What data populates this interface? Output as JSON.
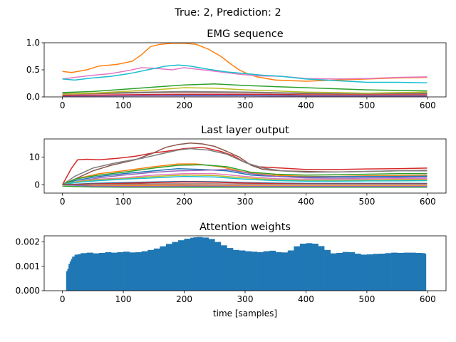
{
  "suptitle": "True: 2, Prediction: 2",
  "chart_data": [
    {
      "type": "line",
      "title": "EMG sequence",
      "xlabel": "",
      "ylabel": "",
      "xlim": [
        -30,
        630
      ],
      "ylim": [
        0,
        1.0
      ],
      "xticks": [
        0,
        100,
        200,
        300,
        400,
        500,
        600
      ],
      "xtick_labels": [
        "0",
        "100",
        "200",
        "300",
        "400",
        "500",
        "600"
      ],
      "yticks": [
        0,
        0.5,
        1.0
      ],
      "ytick_labels": [
        "0.0",
        "0.5",
        "1.0"
      ],
      "grid": false,
      "series": [
        {
          "color": "#1f77b4",
          "x": [
            0,
            100,
            200,
            300,
            400,
            500,
            599
          ],
          "y": [
            0.02,
            0.02,
            0.03,
            0.03,
            0.02,
            0.02,
            0.02
          ]
        },
        {
          "color": "#ff7f0e",
          "x": [
            0,
            15,
            40,
            60,
            90,
            115,
            130,
            145,
            160,
            180,
            200,
            220,
            240,
            260,
            275,
            290,
            305,
            320,
            350,
            400,
            450,
            500,
            550,
            599
          ],
          "y": [
            0.47,
            0.45,
            0.5,
            0.57,
            0.6,
            0.66,
            0.78,
            0.93,
            0.97,
            0.99,
            0.99,
            0.97,
            0.88,
            0.75,
            0.62,
            0.5,
            0.42,
            0.37,
            0.31,
            0.29,
            0.31,
            0.33,
            0.35,
            0.36
          ]
        },
        {
          "color": "#2ca02c",
          "x": [
            0,
            50,
            100,
            150,
            200,
            250,
            300,
            350,
            400,
            450,
            500,
            550,
            599
          ],
          "y": [
            0.08,
            0.1,
            0.14,
            0.18,
            0.22,
            0.24,
            0.21,
            0.19,
            0.17,
            0.15,
            0.13,
            0.12,
            0.11
          ]
        },
        {
          "color": "#d62728",
          "x": [
            0,
            100,
            200,
            300,
            400,
            500,
            599
          ],
          "y": [
            0.03,
            0.04,
            0.05,
            0.05,
            0.04,
            0.04,
            0.04
          ]
        },
        {
          "color": "#9467bd",
          "x": [
            0,
            100,
            200,
            300,
            400,
            500,
            599
          ],
          "y": [
            0.01,
            0.02,
            0.02,
            0.02,
            0.01,
            0.01,
            0.01
          ]
        },
        {
          "color": "#8c564b",
          "x": [
            0,
            100,
            200,
            300,
            400,
            500,
            599
          ],
          "y": [
            0.05,
            0.07,
            0.09,
            0.08,
            0.06,
            0.06,
            0.06
          ]
        },
        {
          "color": "#e377c2",
          "x": [
            0,
            20,
            50,
            80,
            110,
            130,
            150,
            180,
            200,
            230,
            260,
            290,
            320,
            360,
            400,
            450,
            500,
            550,
            599
          ],
          "y": [
            0.33,
            0.36,
            0.4,
            0.43,
            0.49,
            0.54,
            0.53,
            0.5,
            0.54,
            0.5,
            0.46,
            0.42,
            0.39,
            0.38,
            0.34,
            0.33,
            0.34,
            0.36,
            0.37
          ]
        },
        {
          "color": "#7f7f7f",
          "x": [
            0,
            100,
            200,
            300,
            400,
            500,
            599
          ],
          "y": [
            0.06,
            0.08,
            0.1,
            0.09,
            0.07,
            0.06,
            0.07
          ]
        },
        {
          "color": "#bcbd22",
          "x": [
            0,
            50,
            100,
            150,
            200,
            250,
            300,
            350,
            400,
            450,
            500,
            550,
            599
          ],
          "y": [
            0.05,
            0.07,
            0.1,
            0.13,
            0.17,
            0.16,
            0.13,
            0.11,
            0.09,
            0.08,
            0.07,
            0.08,
            0.09
          ]
        },
        {
          "color": "#17becf",
          "x": [
            0,
            20,
            50,
            80,
            110,
            140,
            170,
            190,
            210,
            240,
            270,
            300,
            330,
            360,
            400,
            450,
            500,
            550,
            599
          ],
          "y": [
            0.33,
            0.31,
            0.35,
            0.38,
            0.43,
            0.5,
            0.57,
            0.59,
            0.57,
            0.51,
            0.46,
            0.43,
            0.4,
            0.38,
            0.33,
            0.3,
            0.27,
            0.27,
            0.26
          ]
        }
      ]
    },
    {
      "type": "line",
      "title": "Last layer output",
      "xlabel": "",
      "ylabel": "",
      "xlim": [
        -30,
        630
      ],
      "ylim": [
        -3,
        16.5
      ],
      "xticks": [
        0,
        100,
        200,
        300,
        400,
        500,
        600
      ],
      "xtick_labels": [
        "0",
        "100",
        "200",
        "300",
        "400",
        "500",
        "600"
      ],
      "yticks": [
        0,
        10
      ],
      "ytick_labels": [
        "0",
        "10"
      ],
      "grid": false,
      "series": [
        {
          "color": "#d62728",
          "x": [
            0,
            15,
            25,
            40,
            60,
            90,
            120,
            150,
            170,
            200,
            230,
            260,
            280,
            300,
            320,
            360,
            400,
            450,
            500,
            550,
            599
          ],
          "y": [
            0,
            6,
            9,
            9.2,
            9,
            9.5,
            10.3,
            11.5,
            12,
            13,
            13.5,
            12,
            10.5,
            8,
            6.5,
            6,
            5.5,
            5.5,
            5.7,
            5.8,
            6
          ]
        },
        {
          "color": "#8c564b",
          "x": [
            0,
            20,
            50,
            80,
            120,
            150,
            170,
            190,
            210,
            230,
            250,
            270,
            290,
            310,
            330,
            360,
            400,
            450,
            500,
            550,
            599
          ],
          "y": [
            0,
            2,
            5,
            7,
            9,
            11.5,
            13.5,
            14.5,
            15,
            14.7,
            13.8,
            12,
            10,
            7,
            5.5,
            5,
            4.8,
            4.6,
            4.8,
            5,
            5.2
          ]
        },
        {
          "color": "#7f7f7f",
          "x": [
            0,
            20,
            50,
            90,
            130,
            160,
            190,
            210,
            240,
            270,
            300,
            330,
            360,
            400,
            450,
            500,
            550,
            599
          ],
          "y": [
            0,
            3,
            6,
            8,
            9.5,
            11,
            12.5,
            13,
            12.5,
            11,
            8,
            6,
            5,
            4.5,
            4.6,
            4.8,
            5,
            5
          ]
        },
        {
          "color": "#ff7f0e",
          "x": [
            0,
            20,
            60,
            100,
            150,
            190,
            220,
            260,
            300,
            340,
            400,
            450,
            500,
            550,
            599
          ],
          "y": [
            0,
            2,
            4,
            5,
            6.5,
            7.5,
            7.5,
            6.5,
            4.5,
            3.5,
            3,
            3,
            3.2,
            3.3,
            3.4
          ]
        },
        {
          "color": "#1f77b4",
          "x": [
            0,
            20,
            60,
            100,
            150,
            190,
            230,
            270,
            310,
            350,
            400,
            450,
            500,
            550,
            599
          ],
          "y": [
            0,
            1.5,
            3,
            4,
            5,
            5.8,
            5.5,
            5,
            3.5,
            3,
            2.8,
            2.9,
            3,
            3,
            3.1
          ]
        },
        {
          "color": "#2ca02c",
          "x": [
            0,
            20,
            60,
            100,
            150,
            190,
            230,
            270,
            310,
            350,
            400,
            450,
            500,
            550,
            599
          ],
          "y": [
            0,
            2,
            3.5,
            4.5,
            6,
            7,
            7.2,
            6.5,
            4.5,
            3.8,
            3.5,
            3.6,
            3.8,
            4,
            4
          ]
        },
        {
          "color": "#9467bd",
          "x": [
            0,
            20,
            60,
            100,
            150,
            190,
            230,
            270,
            310,
            350,
            400,
            450,
            500,
            550,
            599
          ],
          "y": [
            0,
            1,
            2.5,
            3.5,
            4.5,
            5,
            5.2,
            5.5,
            4,
            3,
            2.5,
            2.4,
            2.5,
            2.6,
            2.7
          ]
        },
        {
          "color": "#e377c2",
          "x": [
            0,
            20,
            60,
            100,
            150,
            200,
            250,
            300,
            350,
            400,
            450,
            500,
            550,
            599
          ],
          "y": [
            0,
            1,
            2,
            2.5,
            3.5,
            4,
            4,
            3,
            2.2,
            2,
            2,
            2.1,
            2.2,
            2.2
          ]
        },
        {
          "color": "#bcbd22",
          "x": [
            0,
            20,
            60,
            100,
            150,
            200,
            250,
            300,
            350,
            400,
            450,
            500,
            550,
            599
          ],
          "y": [
            0,
            1,
            1.8,
            2.2,
            3,
            3.5,
            3.3,
            2.5,
            1.8,
            1.6,
            1.6,
            1.7,
            1.8,
            1.8
          ]
        },
        {
          "color": "#17becf",
          "x": [
            0,
            20,
            60,
            100,
            150,
            200,
            250,
            300,
            350,
            400,
            450,
            500,
            550,
            599
          ],
          "y": [
            0,
            0.8,
            1.5,
            2,
            2.5,
            3,
            2.8,
            2,
            1.5,
            1.3,
            1.3,
            1.4,
            1.4,
            1.5
          ]
        },
        {
          "color": "#1f77b4",
          "x": [
            0,
            50,
            100,
            150,
            200,
            250,
            300,
            350,
            400,
            500,
            599
          ],
          "y": [
            0,
            0.5,
            0.8,
            1,
            1.2,
            1.1,
            0.8,
            0.6,
            0.5,
            0.5,
            0.5
          ]
        },
        {
          "color": "#ff7f0e",
          "x": [
            0,
            50,
            100,
            150,
            200,
            250,
            300,
            350,
            400,
            500,
            599
          ],
          "y": [
            0,
            -0.3,
            -0.3,
            -0.2,
            -0.2,
            -0.3,
            -0.4,
            -0.4,
            -0.4,
            -0.4,
            -0.4
          ]
        },
        {
          "color": "#2ca02c",
          "x": [
            0,
            50,
            100,
            150,
            200,
            250,
            300,
            350,
            400,
            500,
            599
          ],
          "y": [
            -0.5,
            -0.8,
            -0.9,
            -0.9,
            -0.9,
            -0.9,
            -0.9,
            -0.9,
            -0.9,
            -0.9,
            -0.9
          ]
        },
        {
          "color": "#d62728",
          "x": [
            0,
            50,
            100,
            150,
            200,
            250,
            300,
            350,
            400,
            500,
            599
          ],
          "y": [
            0,
            0.3,
            0.5,
            0.8,
            1,
            0.9,
            0.6,
            0.4,
            0.3,
            0.3,
            0.3
          ]
        },
        {
          "color": "#9467bd",
          "x": [
            0,
            50,
            100,
            150,
            200,
            250,
            300,
            350,
            400,
            500,
            599
          ],
          "y": [
            0,
            -0.5,
            -0.6,
            -0.6,
            -0.5,
            -0.5,
            -0.6,
            -0.6,
            -0.6,
            -0.6,
            -0.6
          ]
        },
        {
          "color": "#8c564b",
          "x": [
            0,
            50,
            100,
            150,
            200,
            250,
            300,
            350,
            400,
            500,
            599
          ],
          "y": [
            0,
            0.2,
            0.2,
            0.3,
            0.3,
            0.3,
            0.2,
            0.2,
            0.2,
            0.2,
            0.2
          ]
        }
      ]
    },
    {
      "type": "bar",
      "title": "Attention weights",
      "xlabel": "time [samples]",
      "ylabel": "",
      "xlim": [
        -30,
        630
      ],
      "ylim": [
        0,
        0.00225
      ],
      "xticks": [
        0,
        100,
        200,
        300,
        400,
        500,
        600
      ],
      "xtick_labels": [
        "0",
        "100",
        "200",
        "300",
        "400",
        "500",
        "600"
      ],
      "yticks": [
        0,
        0.001,
        0.002
      ],
      "ytick_labels": [
        "0.000",
        "0.001",
        "0.002"
      ],
      "grid": false,
      "color": "#1f77b4",
      "x": [
        6,
        8,
        10,
        12,
        14,
        16,
        20,
        25,
        30,
        40,
        50,
        60,
        70,
        80,
        90,
        100,
        110,
        120,
        130,
        140,
        150,
        160,
        170,
        180,
        190,
        200,
        210,
        215,
        220,
        230,
        240,
        250,
        260,
        270,
        280,
        290,
        300,
        310,
        320,
        330,
        340,
        350,
        360,
        370,
        380,
        390,
        400,
        410,
        420,
        430,
        440,
        450,
        460,
        470,
        480,
        490,
        500,
        510,
        520,
        530,
        540,
        550,
        560,
        570,
        580,
        590,
        595
      ],
      "values": [
        0.0008,
        0.0009,
        0.0011,
        0.0012,
        0.0013,
        0.0014,
        0.00148,
        0.0015,
        0.00154,
        0.00156,
        0.00153,
        0.00155,
        0.00158,
        0.00156,
        0.00158,
        0.0016,
        0.00157,
        0.00158,
        0.00162,
        0.00167,
        0.00173,
        0.00182,
        0.00192,
        0.002,
        0.00207,
        0.00213,
        0.00217,
        0.00219,
        0.0022,
        0.00218,
        0.00212,
        0.002,
        0.00186,
        0.00175,
        0.00167,
        0.00165,
        0.00162,
        0.0016,
        0.00158,
        0.00162,
        0.00164,
        0.00158,
        0.00157,
        0.00165,
        0.00182,
        0.00193,
        0.00195,
        0.00193,
        0.00183,
        0.00167,
        0.00153,
        0.00155,
        0.00159,
        0.00158,
        0.00152,
        0.00148,
        0.00149,
        0.00151,
        0.00152,
        0.00154,
        0.00156,
        0.00155,
        0.00156,
        0.00156,
        0.00155,
        0.00154,
        0.00152
      ]
    }
  ]
}
